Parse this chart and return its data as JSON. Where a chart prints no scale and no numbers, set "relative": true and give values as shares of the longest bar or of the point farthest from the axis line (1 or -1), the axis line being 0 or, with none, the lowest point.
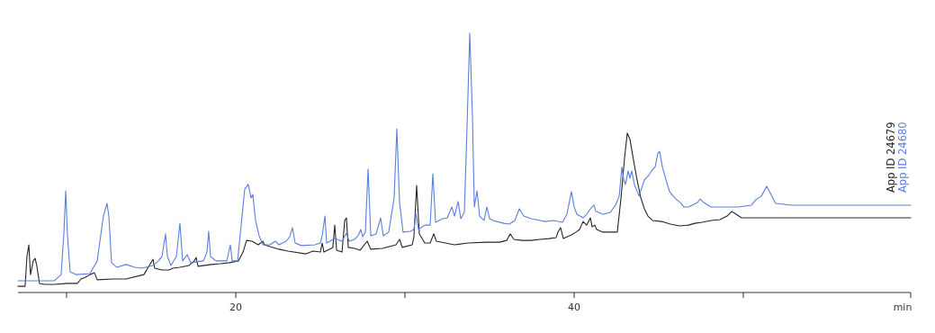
{
  "chart_data": {
    "type": "line",
    "relative": true,
    "xlabel": "min",
    "xlim": [
      7.13,
      59.89
    ],
    "xticks": [
      {
        "value": 10,
        "label": null
      },
      20,
      {
        "value": 30,
        "label": null
      },
      40,
      {
        "value": 50,
        "label": null
      },
      {
        "value": 59.89,
        "label": null
      }
    ],
    "legend": "right",
    "grid": false,
    "series": [
      {
        "name": "App ID 24679",
        "color": "#262626",
        "x": [
          7.13,
          7.55,
          7.66,
          7.77,
          7.87,
          8.03,
          8.14,
          8.24,
          8.4,
          8.72,
          9.26,
          10.05,
          10.64,
          10.85,
          11.12,
          11.38,
          11.65,
          11.81,
          12.71,
          13.51,
          14.57,
          14.89,
          15.11,
          15.21,
          15.64,
          16.06,
          16.28,
          16.7,
          17.23,
          17.55,
          17.66,
          17.77,
          18.56,
          19.1,
          19.63,
          20.16,
          20.43,
          20.64,
          20.96,
          21.33,
          21.6,
          21.7,
          22.02,
          22.55,
          23.09,
          24.15,
          24.57,
          25,
          25.11,
          25.21,
          25.74,
          25.85,
          25.96,
          26.28,
          26.44,
          26.54,
          26.65,
          27.02,
          27.34,
          27.77,
          27.98,
          28.67,
          29.47,
          29.68,
          29.84,
          30.43,
          30.53,
          30.69,
          30.85,
          31.17,
          31.49,
          31.7,
          31.86,
          32.39,
          32.93,
          33.72,
          34.79,
          35.59,
          36.01,
          36.22,
          36.44,
          36.91,
          37.45,
          37.98,
          38.51,
          38.94,
          39.04,
          39.2,
          39.36,
          39.84,
          40.11,
          40.32,
          40.43,
          40.53,
          40.74,
          40.96,
          41.06,
          41.22,
          41.33,
          41.7,
          42.55,
          42.77,
          42.98,
          43.14,
          43.3,
          43.51,
          43.72,
          43.94,
          44.15,
          44.36,
          44.63,
          45.16,
          45.69,
          46.22,
          46.76,
          47.13,
          47.55,
          48.09,
          48.62,
          49.04,
          49.31,
          49.57,
          49.89,
          50.21,
          59.89
        ],
        "values": [
          0.024,
          0.024,
          0.139,
          0.184,
          0.069,
          0.122,
          0.132,
          0.104,
          0.035,
          0.031,
          0.031,
          0.035,
          0.035,
          0.052,
          0.059,
          0.069,
          0.076,
          0.049,
          0.052,
          0.052,
          0.069,
          0.104,
          0.128,
          0.094,
          0.087,
          0.087,
          0.094,
          0.097,
          0.104,
          0.122,
          0.135,
          0.101,
          0.108,
          0.111,
          0.115,
          0.122,
          0.156,
          0.201,
          0.198,
          0.184,
          0.198,
          0.184,
          0.177,
          0.167,
          0.16,
          0.149,
          0.16,
          0.156,
          0.191,
          0.156,
          0.174,
          0.26,
          0.163,
          0.156,
          0.278,
          0.288,
          0.174,
          0.17,
          0.163,
          0.198,
          0.167,
          0.17,
          0.184,
          0.205,
          0.174,
          0.184,
          0.215,
          0.413,
          0.226,
          0.191,
          0.191,
          0.226,
          0.198,
          0.191,
          0.184,
          0.191,
          0.194,
          0.194,
          0.201,
          0.226,
          0.205,
          0.201,
          0.201,
          0.205,
          0.208,
          0.212,
          0.233,
          0.25,
          0.208,
          0.222,
          0.233,
          0.243,
          0.26,
          0.274,
          0.26,
          0.288,
          0.253,
          0.26,
          0.243,
          0.233,
          0.233,
          0.365,
          0.521,
          0.615,
          0.59,
          0.51,
          0.434,
          0.365,
          0.323,
          0.295,
          0.278,
          0.274,
          0.264,
          0.257,
          0.26,
          0.267,
          0.271,
          0.278,
          0.281,
          0.295,
          0.313,
          0.302,
          0.288,
          0.288,
          0.288
        ]
      },
      {
        "name": "App ID 24680",
        "color": "#5b7fde",
        "x": [
          7.13,
          9.26,
          9.68,
          9.84,
          9.95,
          10.05,
          10.21,
          10.59,
          11.38,
          11.81,
          12.18,
          12.39,
          12.5,
          12.66,
          12.98,
          13.51,
          14.04,
          14.47,
          15.11,
          15.43,
          15.64,
          15.85,
          15.96,
          16.17,
          16.49,
          16.7,
          16.86,
          17.13,
          17.34,
          18.09,
          18.3,
          18.4,
          18.51,
          18.83,
          19.47,
          19.68,
          19.79,
          20.11,
          20.32,
          20.53,
          20.74,
          20.9,
          21.01,
          21.17,
          21.38,
          21.6,
          22.02,
          22.34,
          22.55,
          22.98,
          23.19,
          23.35,
          23.51,
          23.88,
          24.68,
          25,
          25.11,
          25.27,
          25.37,
          25.85,
          26.28,
          26.54,
          26.7,
          27.02,
          27.23,
          27.39,
          27.5,
          27.66,
          27.82,
          27.98,
          28.3,
          28.56,
          28.72,
          29.04,
          29.36,
          29.52,
          29.68,
          29.89,
          30.32,
          30.53,
          30.64,
          30.8,
          31.17,
          31.49,
          31.65,
          31.81,
          32.23,
          32.5,
          32.77,
          32.93,
          33.14,
          33.3,
          33.51,
          33.67,
          33.83,
          33.99,
          34.1,
          34.26,
          34.41,
          34.68,
          34.84,
          35,
          35.21,
          35.85,
          36.17,
          36.49,
          36.76,
          37.02,
          37.45,
          37.98,
          38.3,
          38.78,
          39.31,
          39.57,
          39.84,
          40,
          40.16,
          40.53,
          40.74,
          40.96,
          41.17,
          41.28,
          41.7,
          42.13,
          42.45,
          42.66,
          42.82,
          42.93,
          43.03,
          43.19,
          43.3,
          43.4,
          43.56,
          43.83,
          44.15,
          44.36,
          44.57,
          44.79,
          44.95,
          45.05,
          45.21,
          45.43,
          45.64,
          45.85,
          46.06,
          46.28,
          46.49,
          46.76,
          47.29,
          47.45,
          47.66,
          48.09,
          48.62,
          49.68,
          50.48,
          50.74,
          51.06,
          51.38,
          51.6,
          51.91,
          52.87,
          56.06,
          59.89
        ],
        "values": [
          0.045,
          0.045,
          0.069,
          0.226,
          0.392,
          0.226,
          0.08,
          0.069,
          0.073,
          0.122,
          0.295,
          0.344,
          0.295,
          0.115,
          0.097,
          0.108,
          0.097,
          0.094,
          0.104,
          0.122,
          0.139,
          0.226,
          0.139,
          0.104,
          0.139,
          0.267,
          0.122,
          0.146,
          0.115,
          0.122,
          0.156,
          0.236,
          0.139,
          0.122,
          0.122,
          0.184,
          0.122,
          0.122,
          0.26,
          0.399,
          0.417,
          0.365,
          0.378,
          0.278,
          0.219,
          0.184,
          0.184,
          0.198,
          0.184,
          0.198,
          0.215,
          0.25,
          0.191,
          0.181,
          0.184,
          0.191,
          0.219,
          0.295,
          0.191,
          0.208,
          0.198,
          0.229,
          0.198,
          0.205,
          0.219,
          0.243,
          0.215,
          0.233,
          0.476,
          0.219,
          0.226,
          0.288,
          0.219,
          0.233,
          0.365,
          0.632,
          0.347,
          0.233,
          0.236,
          0.243,
          0.306,
          0.243,
          0.26,
          0.26,
          0.458,
          0.271,
          0.285,
          0.288,
          0.33,
          0.295,
          0.351,
          0.285,
          0.309,
          0.642,
          1,
          0.677,
          0.33,
          0.392,
          0.295,
          0.278,
          0.33,
          0.285,
          0.278,
          0.267,
          0.264,
          0.278,
          0.323,
          0.295,
          0.285,
          0.278,
          0.274,
          0.278,
          0.271,
          0.302,
          0.389,
          0.33,
          0.302,
          0.288,
          0.302,
          0.323,
          0.337,
          0.313,
          0.302,
          0.309,
          0.337,
          0.372,
          0.483,
          0.434,
          0.417,
          0.469,
          0.441,
          0.469,
          0.417,
          0.372,
          0.434,
          0.448,
          0.469,
          0.486,
          0.538,
          0.545,
          0.486,
          0.434,
          0.389,
          0.372,
          0.358,
          0.347,
          0.33,
          0.33,
          0.347,
          0.361,
          0.347,
          0.33,
          0.33,
          0.33,
          0.337,
          0.358,
          0.372,
          0.41,
          0.382,
          0.344,
          0.337,
          0.337,
          0.337
        ]
      }
    ]
  }
}
